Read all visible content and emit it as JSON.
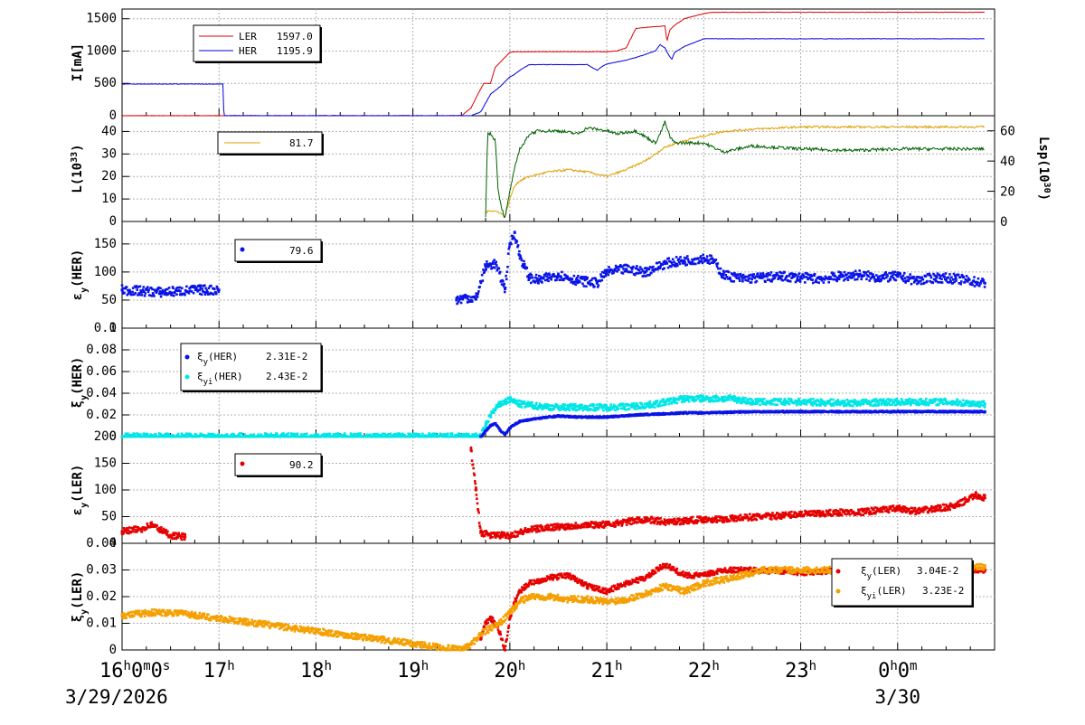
{
  "time_axis": {
    "ticks": [
      "16h0m0s",
      "17h",
      "18h",
      "19h",
      "20h",
      "21h",
      "22h",
      "23h",
      "0h0m"
    ],
    "dates": [
      "3/29/2026",
      "3/30"
    ]
  },
  "colors": {
    "ler": "#dd0000",
    "her": "#0000dd",
    "lumi": "#e0a000",
    "lsp": "#006000",
    "her_blue": "#0a14e6",
    "cyan": "#00e6e6",
    "ler_red": "#e60000",
    "orange": "#f5a000",
    "grid": "#b0b0b0"
  },
  "chart_data": [
    {
      "type": "line",
      "ylabel": "I[mA]",
      "yticks": [
        "0",
        "500",
        "1000",
        "1500"
      ],
      "ylim": [
        0,
        1650
      ],
      "legend": [
        {
          "name": "LER",
          "value": "1597.0"
        },
        {
          "name": "HER",
          "value": "1195.9"
        }
      ],
      "series": [
        {
          "name": "LER",
          "x": [
            0,
            1.05,
            1.06,
            3.5,
            3.6,
            3.67,
            3.73,
            3.75,
            3.8,
            3.85,
            4.0,
            4.05,
            4.1,
            5.0,
            5.1,
            5.2,
            5.25,
            5.3,
            5.5,
            5.55,
            5.6,
            5.62,
            5.65,
            5.7,
            5.8,
            5.9,
            5.95,
            6.0,
            6.1,
            8.0,
            8.9
          ],
          "y": [
            0,
            0,
            0,
            0,
            120,
            330,
            500,
            500,
            500,
            750,
            980,
            990,
            990,
            990,
            1000,
            1050,
            1200,
            1350,
            1380,
            1380,
            1390,
            1150,
            1330,
            1400,
            1500,
            1540,
            1560,
            1580,
            1600,
            1600,
            1600
          ]
        },
        {
          "name": "HER",
          "x": [
            0,
            1.03,
            1.04,
            1.05,
            3.5,
            3.6,
            3.7,
            3.8,
            3.9,
            4.0,
            4.05,
            4.1,
            4.2,
            4.4,
            4.8,
            4.9,
            4.95,
            5.0,
            5.1,
            5.2,
            5.3,
            5.4,
            5.5,
            5.55,
            5.6,
            5.63,
            5.67,
            5.7,
            5.8,
            6.0,
            8.9
          ],
          "y": [
            490,
            490,
            490,
            0,
            0,
            0,
            60,
            330,
            450,
            600,
            640,
            700,
            790,
            790,
            790,
            700,
            760,
            800,
            830,
            860,
            900,
            950,
            1000,
            1100,
            1050,
            960,
            870,
            980,
            1070,
            1190,
            1190
          ]
        }
      ]
    },
    {
      "type": "line",
      "ylabel": "L(10^33)",
      "ylabel_right": "Lsp(10^30)",
      "yticks": [
        "0",
        "10",
        "20",
        "30",
        "40"
      ],
      "yticks_right": [
        "0",
        "20",
        "40",
        "60"
      ],
      "ylim": [
        0,
        47
      ],
      "ylim_right": [
        0,
        70
      ],
      "legend": [
        {
          "name": "",
          "value": "81.7"
        }
      ],
      "series": [
        {
          "name": "L",
          "x": [
            3.75,
            3.8,
            3.9,
            3.95,
            4.0,
            4.05,
            4.1,
            4.2,
            4.4,
            4.6,
            4.8,
            5.0,
            5.2,
            5.4,
            5.6,
            5.8,
            6.0,
            6.2,
            6.5,
            7.0,
            7.5,
            8.0,
            8.5,
            8.9
          ],
          "y": [
            4,
            5,
            4,
            2,
            10,
            16,
            18,
            20,
            22,
            23,
            22,
            20,
            23,
            27,
            33,
            36,
            38,
            40,
            41,
            42,
            42,
            42,
            42,
            42
          ]
        },
        {
          "name": "Lsp",
          "x": [
            3.75,
            3.77,
            3.8,
            3.85,
            3.88,
            3.92,
            3.95,
            4.0,
            4.05,
            4.1,
            4.15,
            4.2,
            4.3,
            4.5,
            4.7,
            4.8,
            5.0,
            5.1,
            5.3,
            5.5,
            5.55,
            5.6,
            5.65,
            5.7,
            5.9,
            6.0,
            6.2,
            6.5,
            7.0,
            7.5,
            8.0,
            8.5,
            8.9
          ],
          "y": [
            2,
            58,
            58,
            54,
            20,
            8,
            2,
            20,
            35,
            48,
            52,
            58,
            60,
            60,
            58,
            62,
            60,
            58,
            60,
            52,
            58,
            66,
            56,
            52,
            52,
            52,
            46,
            50,
            48,
            47,
            48,
            48,
            48
          ]
        }
      ]
    },
    {
      "type": "scatter",
      "ylabel": "εy(HER)",
      "yticks": [
        "0",
        "50",
        "100",
        "150"
      ],
      "ylim": [
        0,
        190
      ],
      "legend": [
        {
          "name": "",
          "value": "79.6"
        }
      ],
      "segments": [
        {
          "name": "",
          "x": [
            0,
            0.2,
            0.4,
            0.6,
            0.8,
            1.0
          ],
          "y": [
            68,
            66,
            64,
            66,
            68,
            68
          ]
        },
        {
          "name": "",
          "x": [
            3.45,
            3.55,
            3.65,
            3.75,
            3.85,
            3.95,
            4.0,
            4.05,
            4.1,
            4.15,
            4.2,
            4.3,
            4.4,
            4.5,
            4.7,
            4.9,
            5.0,
            5.2,
            5.4,
            5.6,
            5.8,
            6.0,
            6.1,
            6.2,
            6.4,
            6.6,
            6.8,
            7.0,
            7.2,
            7.4,
            7.6,
            7.8,
            8.0,
            8.2,
            8.4,
            8.6,
            8.9
          ],
          "y": [
            50,
            55,
            52,
            110,
            115,
            70,
            150,
            170,
            130,
            110,
            90,
            85,
            90,
            95,
            85,
            80,
            100,
            105,
            100,
            115,
            120,
            125,
            120,
            95,
            88,
            90,
            92,
            90,
            88,
            92,
            95,
            90,
            92,
            85,
            90,
            88,
            80
          ]
        }
      ]
    },
    {
      "type": "scatter",
      "ylabel": "ξy(HER)",
      "yticks": [
        "0",
        "0.02",
        "0.04",
        "0.06",
        "0.08",
        "0.1"
      ],
      "ylim": [
        0,
        0.1
      ],
      "legend": [
        {
          "name": "ξy(HER)",
          "value": "2.31E-2"
        },
        {
          "name": "ξyi(HER)",
          "value": "2.43E-2"
        }
      ],
      "series": [
        {
          "name": "ξy(HER)",
          "x": [
            3.7,
            3.75,
            3.8,
            3.85,
            3.9,
            3.95,
            4.0,
            4.1,
            4.3,
            4.5,
            4.7,
            5.0,
            5.3,
            5.6,
            5.8,
            6.0,
            6.5,
            7.0,
            7.5,
            8.0,
            8.5,
            8.9
          ],
          "y": [
            0.0,
            0.005,
            0.01,
            0.012,
            0.006,
            0.002,
            0.008,
            0.014,
            0.017,
            0.019,
            0.018,
            0.018,
            0.02,
            0.021,
            0.022,
            0.022,
            0.023,
            0.023,
            0.023,
            0.023,
            0.023,
            0.023
          ]
        },
        {
          "name": "ξyi(HER)",
          "x": [
            0,
            0.3,
            0.6,
            0.75,
            3.7,
            3.75,
            3.8,
            3.85,
            3.9,
            3.95,
            4.0,
            4.1,
            4.3,
            4.5,
            4.8,
            5.0,
            5.3,
            5.5,
            5.8,
            6.0,
            6.3,
            6.5,
            7.0,
            7.5,
            8.0,
            8.5,
            8.9
          ],
          "y": [
            0,
            0,
            0,
            0,
            0.0,
            0.01,
            0.02,
            0.025,
            0.03,
            0.032,
            0.034,
            0.03,
            0.028,
            0.027,
            0.027,
            0.027,
            0.028,
            0.03,
            0.035,
            0.035,
            0.035,
            0.032,
            0.032,
            0.031,
            0.032,
            0.032,
            0.03
          ]
        }
      ]
    },
    {
      "type": "scatter",
      "ylabel": "εy(LER)",
      "yticks": [
        "0",
        "50",
        "100",
        "150",
        "200"
      ],
      "ylim": [
        0,
        200
      ],
      "legend": [
        {
          "name": "",
          "value": "90.2"
        }
      ],
      "segments": [
        {
          "name": "",
          "x": [
            0,
            0.2,
            0.3,
            0.4,
            0.5,
            0.65
          ],
          "y": [
            22,
            27,
            35,
            25,
            15,
            12
          ]
        },
        {
          "name": "",
          "x": [
            3.6,
            3.65,
            3.7,
            3.8,
            4.0,
            4.2,
            4.4,
            4.6,
            4.8,
            5.0,
            5.2,
            5.4,
            5.6,
            5.8,
            6.0,
            6.2,
            6.4,
            6.6,
            6.8,
            7.0,
            7.2,
            7.4,
            7.6,
            7.8,
            8.0,
            8.2,
            8.4,
            8.6,
            8.8,
            8.9
          ],
          "y": [
            175,
            100,
            20,
            15,
            15,
            25,
            30,
            32,
            35,
            35,
            40,
            45,
            40,
            42,
            45,
            45,
            48,
            50,
            52,
            55,
            55,
            58,
            58,
            62,
            65,
            60,
            65,
            70,
            90,
            85
          ]
        }
      ]
    },
    {
      "type": "scatter",
      "ylabel": "ξy(LER)",
      "yticks": [
        "0",
        "0.01",
        "0.02",
        "0.03",
        "0.04"
      ],
      "ylim": [
        0,
        0.04
      ],
      "legend": [
        {
          "name": "ξy(LER)",
          "value": "3.04E-2"
        },
        {
          "name": "ξyi(LER)",
          "value": "3.23E-2"
        }
      ],
      "series": [
        {
          "name": "ξy(LER)",
          "x": [
            3.7,
            3.75,
            3.8,
            3.85,
            3.9,
            3.95,
            4.0,
            4.05,
            4.1,
            4.2,
            4.4,
            4.6,
            4.8,
            5.0,
            5.2,
            5.4,
            5.6,
            5.8,
            6.0,
            6.2,
            6.5,
            7.0,
            7.5,
            8.0,
            8.5,
            8.9
          ],
          "y": [
            0.004,
            0.01,
            0.012,
            0.01,
            0.006,
            0.0,
            0.012,
            0.018,
            0.022,
            0.025,
            0.027,
            0.028,
            0.024,
            0.022,
            0.025,
            0.027,
            0.032,
            0.028,
            0.028,
            0.03,
            0.03,
            0.029,
            0.03,
            0.03,
            0.03,
            0.03
          ]
        },
        {
          "name": "ξyi(LER)",
          "x": [
            0,
            0.3,
            0.6,
            0.75,
            3.5,
            3.6,
            3.7,
            3.8,
            3.9,
            4.0,
            4.1,
            4.2,
            4.4,
            4.6,
            4.8,
            5.0,
            5.2,
            5.4,
            5.6,
            5.8,
            6.0,
            6.3,
            6.6,
            7.0,
            7.5,
            8.0,
            8.5,
            8.9
          ],
          "y": [
            0.013,
            0.014,
            0.014,
            0.013,
            0.0,
            0.002,
            0.006,
            0.008,
            0.01,
            0.014,
            0.018,
            0.02,
            0.02,
            0.019,
            0.019,
            0.018,
            0.019,
            0.021,
            0.024,
            0.022,
            0.025,
            0.027,
            0.03,
            0.03,
            0.03,
            0.03,
            0.031,
            0.031
          ]
        }
      ]
    }
  ]
}
